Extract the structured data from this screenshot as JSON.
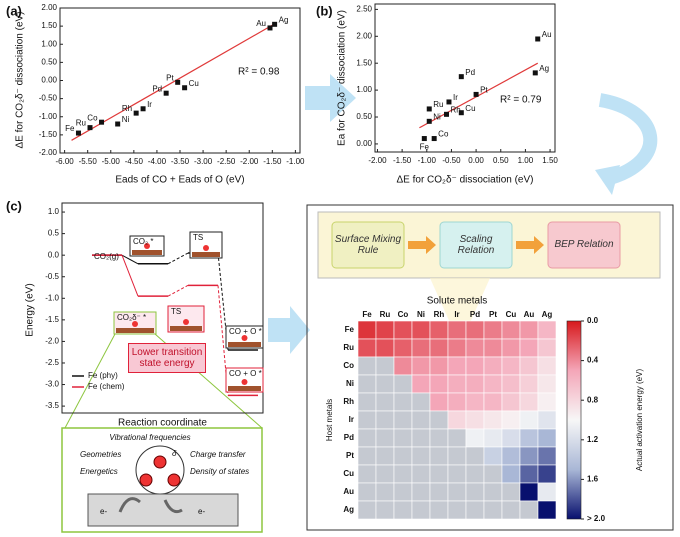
{
  "chart_data": [
    {
      "type": "scatter",
      "panel": "(a)",
      "x_label": "Eads of CO + Eads of O (eV)",
      "y_label": "ΔE for CO₂δ⁻ dissociation (eV)",
      "x": [
        -5.7,
        -5.45,
        -5.2,
        -4.85,
        -4.45,
        -4.3,
        -3.8,
        -3.55,
        -3.4,
        -1.55,
        -1.45
      ],
      "values": [
        -1.45,
        -1.3,
        -1.15,
        -1.2,
        -0.9,
        -0.78,
        -0.35,
        -0.05,
        -0.2,
        1.45,
        1.55
      ],
      "point_labels": [
        "Fe",
        "Ru",
        "Co",
        "Ni",
        "Rh",
        "Ir",
        "Pd",
        "Pt",
        "Cu",
        "Au",
        "Ag"
      ],
      "color": "#111111",
      "fit_color": "#e03a3a",
      "fit_x": [
        -5.85,
        -1.4
      ],
      "fit_y": [
        -1.65,
        1.6
      ],
      "annotation": "R² = 0.98",
      "xlim": [
        -6.1,
        -0.9
      ],
      "ylim": [
        -2,
        2
      ],
      "xticks": [
        {
          "value": -6,
          "label": "-6.00"
        },
        {
          "value": -5.5,
          "label": "-5.50"
        },
        {
          "value": -5,
          "label": "-5.00"
        },
        {
          "value": -4.5,
          "label": "-4.50"
        },
        {
          "value": -4,
          "label": "-4.00"
        },
        {
          "value": -3.5,
          "label": "-3.50"
        },
        {
          "value": -3,
          "label": "-3.00"
        },
        {
          "value": -2.5,
          "label": "-2.50"
        },
        {
          "value": -2,
          "label": "-2.00"
        },
        {
          "value": -1.5,
          "label": "-1.50"
        },
        {
          "value": -1,
          "label": "-1.00"
        }
      ],
      "yticks": [
        {
          "value": 2,
          "label": "2.00"
        },
        {
          "value": 1.5,
          "label": "1.50"
        },
        {
          "value": 1,
          "label": "1.00"
        },
        {
          "value": 0.5,
          "label": "0.50"
        },
        {
          "value": 0,
          "label": "0.00"
        },
        {
          "value": -0.5,
          "label": "-0.50"
        },
        {
          "value": -1,
          "label": "-1.00"
        },
        {
          "value": -1.5,
          "label": "-1.50"
        },
        {
          "value": -2,
          "label": "-2.00"
        }
      ]
    },
    {
      "type": "scatter",
      "panel": "(b)",
      "x_label": "ΔE for CO₂δ⁻ dissociation (eV)",
      "y_label": "Ea for CO₂δ⁻ dissociation (eV)",
      "x": [
        -1.05,
        -0.85,
        -0.95,
        -0.95,
        -0.6,
        -0.55,
        -0.3,
        -0.3,
        0,
        1.2,
        1.25
      ],
      "values": [
        0.1,
        0.1,
        0.42,
        0.65,
        0.55,
        0.78,
        1.25,
        0.58,
        0.92,
        1.32,
        1.95
      ],
      "point_labels": [
        "Fe",
        "Co",
        "Ni",
        "Ru",
        "Rh",
        "Ir",
        "Pd",
        "Cu",
        "Pt",
        "Ag",
        "Au"
      ],
      "color": "#111111",
      "fit_color": "#e03a3a",
      "fit_x": [
        -1.15,
        1.25
      ],
      "fit_y": [
        0.3,
        1.5
      ],
      "annotation": "R² = 0.79",
      "xlim": [
        -2.05,
        1.6
      ],
      "ylim": [
        -0.15,
        2.6
      ],
      "xticks": [
        {
          "value": -2,
          "label": "-2.00"
        },
        {
          "value": -1.5,
          "label": "-1.50"
        },
        {
          "value": -1,
          "label": "-1.00"
        },
        {
          "value": -0.5,
          "label": "-0.50"
        },
        {
          "value": 0,
          "label": "0.00"
        },
        {
          "value": 0.5,
          "label": "0.50"
        },
        {
          "value": 1,
          "label": "1.00"
        },
        {
          "value": 1.5,
          "label": "1.50"
        }
      ],
      "yticks": [
        {
          "value": 0,
          "label": "0.00"
        },
        {
          "value": 0.5,
          "label": "0.50"
        },
        {
          "value": 1,
          "label": "1.00"
        },
        {
          "value": 1.5,
          "label": "1.50"
        },
        {
          "value": 2,
          "label": "2.00"
        },
        {
          "value": 2.5,
          "label": "2.50"
        }
      ]
    },
    {
      "type": "energy",
      "panel": "(c)",
      "x_label": "Reaction coordinate",
      "y_label": "Energy (eV)",
      "categories": [
        null,
        null,
        null,
        null
      ],
      "series": [
        {
          "name": "Fe (phy)",
          "color": "#111111",
          "values": [
            0,
            -0.2,
            0.05,
            -2.2
          ]
        },
        {
          "name": "Fe (chem)",
          "color": "#e0223a",
          "values": [
            0,
            -0.95,
            -0.7,
            -3.25
          ]
        }
      ],
      "annotations": [
        "CO₂(g)",
        "CO₂ *",
        "TS",
        "CO₂δ⁻ *",
        "TS",
        "CO + O *",
        "CO + O *"
      ],
      "callout": "Lower transition state energy",
      "ylim": [
        -3.66,
        1.21
      ],
      "yticks": [
        {
          "value": 1,
          "label": "1.0"
        },
        0.5,
        {
          "value": 0,
          "label": "0.0"
        },
        -0.5,
        {
          "value": -1,
          "label": "-1.0"
        },
        -1.5,
        {
          "value": -2,
          "label": "-2.0"
        },
        -2.5,
        {
          "value": -3,
          "label": "-3.0"
        },
        -3.5
      ]
    },
    {
      "type": "heatmap",
      "x_label": "Solute metals",
      "y_label": "Host metals",
      "colorbar_label": "Actual activation energy (eV)",
      "x_categories": [
        "Fe",
        "Ru",
        "Co",
        "Ni",
        "Rh",
        "Ir",
        "Pd",
        "Pt",
        "Cu",
        "Au",
        "Ag"
      ],
      "y_categories": [
        "Fe",
        "Ru",
        "Co",
        "Ni",
        "Rh",
        "Ir",
        "Pd",
        "Pt",
        "Cu",
        "Au",
        "Ag"
      ],
      "values": [
        [
          0.1,
          0.15,
          0.2,
          0.2,
          0.25,
          0.3,
          0.3,
          0.35,
          0.4,
          0.45,
          0.6
        ],
        [
          0.2,
          0.2,
          0.25,
          0.3,
          0.3,
          0.35,
          0.4,
          0.4,
          0.45,
          0.5,
          0.7
        ],
        [
          null,
          null,
          0.4,
          0.45,
          0.45,
          0.5,
          0.5,
          0.55,
          0.6,
          0.7,
          0.85
        ],
        [
          null,
          null,
          null,
          0.5,
          0.5,
          0.55,
          0.55,
          0.6,
          0.65,
          0.75,
          0.9
        ],
        [
          null,
          null,
          null,
          null,
          0.5,
          0.55,
          0.6,
          0.6,
          0.7,
          0.8,
          0.95
        ],
        [
          null,
          null,
          null,
          null,
          null,
          0.8,
          0.85,
          0.9,
          0.95,
          1.05,
          1.15
        ],
        [
          null,
          null,
          null,
          null,
          null,
          null,
          1.05,
          1.1,
          1.2,
          1.4,
          1.5
        ],
        [
          null,
          null,
          null,
          null,
          null,
          null,
          null,
          1.3,
          1.45,
          1.6,
          1.7
        ],
        [
          null,
          null,
          null,
          null,
          null,
          null,
          null,
          null,
          1.5,
          1.75,
          1.85
        ],
        [
          null,
          null,
          null,
          null,
          null,
          null,
          null,
          null,
          null,
          2.0,
          1.1
        ],
        [
          null,
          null,
          null,
          null,
          null,
          null,
          null,
          null,
          null,
          null,
          2.0
        ]
      ],
      "colormap": [
        "#d7191c",
        "#f4a6b8",
        "#f7f7f7",
        "#a9b7d6",
        "#08106e"
      ],
      "missing_color": "#c5c9d1",
      "clim": [
        0,
        2
      ],
      "cticks": [
        {
          "value": 0,
          "label": "0.0"
        },
        0.4,
        0.8,
        1.2,
        1.6,
        {
          "value": 2,
          "label": "> 2.0"
        }
      ]
    }
  ],
  "flow": [
    "Surface Mixing Rule",
    "Scaling Relation",
    "BEP Relation"
  ],
  "inset": [
    "Vibrational frequencies",
    "Geometries",
    "Charge transfer",
    "Energetics",
    "Density of states",
    "δ",
    "e-",
    "e-"
  ]
}
